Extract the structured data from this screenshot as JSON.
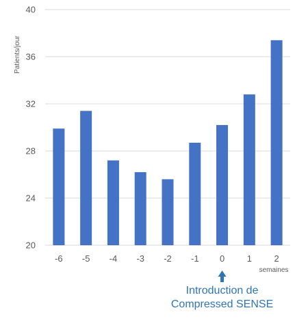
{
  "chart_data": {
    "type": "bar",
    "title": "",
    "ylabel": "Patients/jour",
    "xlabel": "semaines",
    "categories": [
      "-6",
      "-5",
      "-4",
      "-3",
      "-2",
      "-1",
      "0",
      "1",
      "2"
    ],
    "values": [
      29.9,
      31.4,
      27.2,
      26.2,
      25.6,
      28.7,
      30.2,
      32.8,
      37.4
    ],
    "ylim": [
      20,
      40
    ],
    "yticks": [
      20,
      24,
      28,
      32,
      36,
      40
    ],
    "grid": true,
    "legend": "none",
    "annotation": {
      "category": "0",
      "line1": "Introduction de",
      "line2": "Compressed SENSE"
    }
  },
  "colors": {
    "bar": "#4472c4",
    "gridline": "#d9d9d9",
    "axis_text": "#595959",
    "annotation": "#2e75b6"
  }
}
